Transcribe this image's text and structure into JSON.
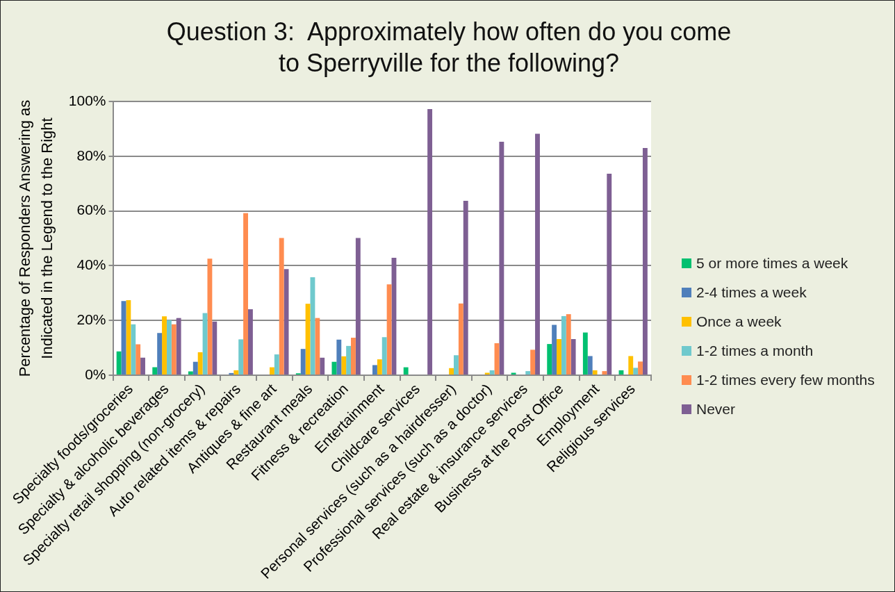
{
  "chart_data": {
    "type": "bar",
    "title": "Question 3:  Approximately how often do you come to Sperryville for the following?",
    "ylabel": "Percentage of Responders Answering as Indicated in the Legend to the Right",
    "categories": [
      "Specialty foods/groceries",
      "Specialty & alcoholic beverages",
      "Specialty retail shopping (non-grocery)",
      "Auto related items & repairs",
      "Antiques & fine art",
      "Restaurant meals",
      "Fitness & recreation",
      "Entertainment",
      "Childcare services",
      "Personal services (such as a hairdresser)",
      "Professional services (such as a doctor)",
      "Real estate & insurance services",
      "Business at the Post Office",
      "Employment",
      "Religious services"
    ],
    "series": [
      {
        "name": "5 or more times a week",
        "color": "#00c070",
        "values": [
          8.7,
          2.9,
          1.4,
          0,
          0,
          0.7,
          4.9,
          0,
          2.9,
          0,
          0,
          0.9,
          11.4,
          15.6,
          1.8
        ]
      },
      {
        "name": "2-4 times a week",
        "color": "#4f7fbb",
        "values": [
          27.1,
          15.4,
          4.9,
          0.8,
          0,
          9.6,
          13.0,
          3.7,
          0,
          0,
          0,
          0,
          18.4,
          7.0,
          0
        ]
      },
      {
        "name": "Once a week",
        "color": "#ffc000",
        "values": [
          27.4,
          21.5,
          8.4,
          1.8,
          2.9,
          26.1,
          6.9,
          5.8,
          0,
          2.6,
          0.9,
          0,
          13.2,
          1.8,
          7.0
        ]
      },
      {
        "name": "1-2 times a month",
        "color": "#6fc9cd",
        "values": [
          18.6,
          20.1,
          22.7,
          13.1,
          7.6,
          35.8,
          10.7,
          13.9,
          0,
          7.3,
          1.8,
          1.5,
          21.6,
          0,
          2.7
        ]
      },
      {
        "name": "1-2 times every few months",
        "color": "#ff8c50",
        "values": [
          11.3,
          18.6,
          42.6,
          59.2,
          50.1,
          20.9,
          13.7,
          33.2,
          0,
          26.2,
          11.7,
          9.3,
          22.3,
          1.5,
          5.0
        ]
      },
      {
        "name": "Never",
        "color": "#7e5f93",
        "values": [
          6.4,
          20.9,
          19.6,
          24.1,
          38.8,
          6.4,
          50.1,
          42.9,
          97.2,
          63.7,
          85.3,
          88.2,
          13.2,
          73.6,
          83.0
        ]
      }
    ],
    "ylim": [
      0,
      100
    ],
    "yticks": [
      {
        "value": 0,
        "label": "0%"
      },
      {
        "value": 20,
        "label": "20%"
      },
      {
        "value": 40,
        "label": "40%"
      },
      {
        "value": 60,
        "label": "60%"
      },
      {
        "value": 80,
        "label": "80%"
      },
      {
        "value": 100,
        "label": "100%"
      }
    ],
    "grid": "y",
    "legend": "right"
  }
}
